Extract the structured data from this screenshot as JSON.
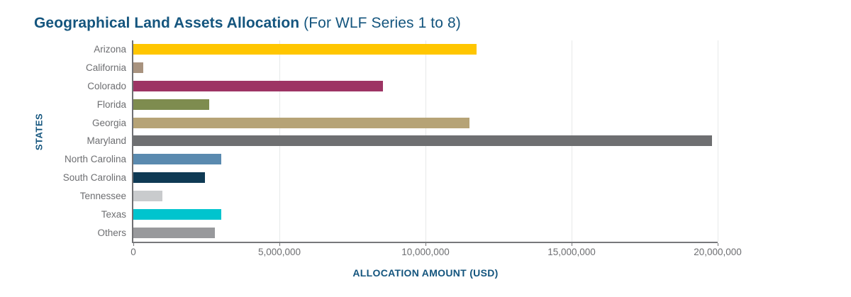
{
  "header": {
    "title_bold": "Geographical Land Assets Allocation",
    "title_suffix": " (For WLF Series 1 to 8)",
    "title_color": "#14557E"
  },
  "chart_data": {
    "type": "bar",
    "orientation": "horizontal",
    "title": "Geographical Land Assets Allocation (For WLF Series 1 to 8)",
    "xlabel": "ALLOCATION AMOUNT (USD)",
    "ylabel": "STATES",
    "categories": [
      "Arizona",
      "California",
      "Colorado",
      "Florida",
      "Georgia",
      "Maryland",
      "North Carolina",
      "South Carolina",
      "Tennessee",
      "Texas",
      "Others"
    ],
    "values": [
      11750000,
      350000,
      8550000,
      2600000,
      11500000,
      19800000,
      3000000,
      2450000,
      1000000,
      3000000,
      2800000
    ],
    "bar_colors": [
      "#FFC600",
      "#A8937F",
      "#9D3464",
      "#7E8C4F",
      "#B6A376",
      "#6E6F71",
      "#5A8AAF",
      "#0F3A54",
      "#C9CBCD",
      "#00C4CE",
      "#98999C"
    ],
    "xlim": [
      0,
      20000000
    ],
    "xtick_values": [
      0,
      5000000,
      10000000,
      15000000,
      20000000
    ],
    "xtick_labels": [
      "0",
      "5,000,000",
      "10,000,000",
      "15,000,000",
      "20,000,000"
    ],
    "grid": "vertical gridlines at 5,000,000 intervals",
    "legend": "none",
    "axis_text_color": "#6d6e71",
    "gridline_color": "#e7e9e9"
  }
}
